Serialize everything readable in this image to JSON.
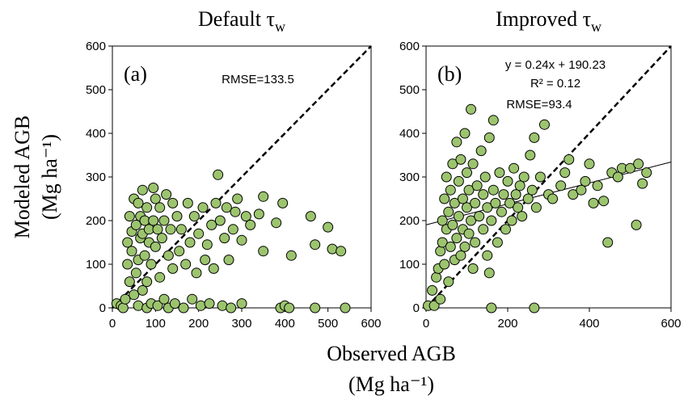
{
  "chart_data": [
    {
      "type": "scatter",
      "title": "Default τ",
      "title_subscript": "w",
      "panel_label": "(a)",
      "annotations": [
        "RMSE=133.5"
      ],
      "color": "#9cc46e",
      "xlim": [
        0,
        600
      ],
      "ylim": [
        0,
        600
      ],
      "xticks": [
        0,
        100,
        200,
        300,
        400,
        500,
        600
      ],
      "yticks": [
        0,
        100,
        200,
        300,
        400,
        500,
        600
      ],
      "x": [
        10,
        20,
        25,
        30,
        35,
        35,
        40,
        40,
        45,
        45,
        50,
        50,
        55,
        55,
        60,
        60,
        60,
        65,
        65,
        70,
        70,
        70,
        75,
        75,
        80,
        80,
        80,
        85,
        85,
        90,
        90,
        95,
        95,
        100,
        100,
        105,
        105,
        110,
        110,
        115,
        120,
        120,
        125,
        130,
        130,
        135,
        140,
        140,
        145,
        150,
        155,
        160,
        165,
        170,
        175,
        180,
        185,
        190,
        195,
        200,
        205,
        210,
        215,
        220,
        225,
        230,
        235,
        240,
        245,
        250,
        255,
        260,
        265,
        270,
        275,
        280,
        285,
        290,
        300,
        300,
        310,
        320,
        340,
        350,
        350,
        380,
        390,
        395,
        400,
        410,
        415,
        460,
        470,
        470,
        500,
        510,
        530,
        540
      ],
      "values": [
        10,
        5,
        0,
        20,
        100,
        150,
        60,
        210,
        130,
        175,
        30,
        250,
        80,
        190,
        110,
        240,
        5,
        160,
        210,
        40,
        170,
        270,
        120,
        200,
        0,
        60,
        230,
        150,
        180,
        10,
        100,
        275,
        200,
        140,
        250,
        5,
        180,
        70,
        230,
        160,
        20,
        200,
        260,
        120,
        0,
        180,
        90,
        240,
        10,
        210,
        130,
        180,
        0,
        100,
        240,
        150,
        20,
        210,
        80,
        170,
        5,
        230,
        110,
        145,
        10,
        190,
        90,
        240,
        305,
        200,
        5,
        160,
        230,
        110,
        0,
        180,
        220,
        250,
        10,
        155,
        210,
        190,
        215,
        130,
        255,
        195,
        0,
        240,
        5,
        0,
        120,
        210,
        145,
        0,
        185,
        135,
        130,
        0
      ]
    },
    {
      "type": "scatter",
      "title": "Improved τ",
      "title_subscript": "w",
      "panel_label": "(b)",
      "annotations": [
        "y = 0.24x + 190.23",
        "R² = 0.12",
        "RMSE=93.4"
      ],
      "trendline": {
        "slope": 0.24,
        "intercept": 190.23
      },
      "color": "#9cc46e",
      "xlim": [
        0,
        600
      ],
      "ylim": [
        0,
        600
      ],
      "xticks": [
        0,
        200,
        400,
        600
      ],
      "yticks": [
        0,
        100,
        200,
        300,
        400,
        500,
        600
      ],
      "x": [
        5,
        15,
        20,
        25,
        30,
        35,
        35,
        40,
        40,
        45,
        45,
        50,
        50,
        55,
        55,
        60,
        60,
        65,
        65,
        70,
        70,
        75,
        75,
        80,
        80,
        85,
        85,
        90,
        90,
        95,
        95,
        100,
        100,
        105,
        105,
        110,
        110,
        115,
        115,
        120,
        120,
        125,
        130,
        135,
        140,
        140,
        145,
        150,
        150,
        155,
        155,
        160,
        160,
        165,
        165,
        170,
        175,
        180,
        185,
        190,
        195,
        200,
        205,
        210,
        215,
        220,
        225,
        230,
        235,
        240,
        250,
        255,
        260,
        265,
        265,
        270,
        280,
        290,
        300,
        310,
        330,
        340,
        350,
        360,
        380,
        390,
        400,
        410,
        420,
        435,
        445,
        455,
        470,
        480,
        500,
        515,
        520,
        530,
        540
      ],
      "values": [
        5,
        40,
        5,
        70,
        90,
        20,
        130,
        150,
        200,
        100,
        250,
        180,
        300,
        60,
        220,
        140,
        270,
        330,
        190,
        110,
        240,
        380,
        160,
        290,
        210,
        120,
        340,
        250,
        180,
        400,
        140,
        230,
        310,
        170,
        270,
        455,
        200,
        90,
        330,
        240,
        150,
        280,
        210,
        360,
        180,
        260,
        300,
        120,
        230,
        80,
        390,
        200,
        0,
        270,
        430,
        240,
        150,
        310,
        220,
        260,
        180,
        290,
        240,
        200,
        320,
        260,
        230,
        280,
        210,
        300,
        250,
        350,
        270,
        0,
        390,
        230,
        300,
        420,
        260,
        250,
        280,
        310,
        340,
        260,
        270,
        290,
        330,
        240,
        280,
        245,
        150,
        310,
        300,
        320,
        320,
        190,
        330,
        285,
        310
      ]
    }
  ],
  "y_label": [
    "Modeled AGB",
    "(Mg ha⁻¹)"
  ],
  "x_label": [
    "Observed AGB",
    "(Mg ha⁻¹)"
  ]
}
